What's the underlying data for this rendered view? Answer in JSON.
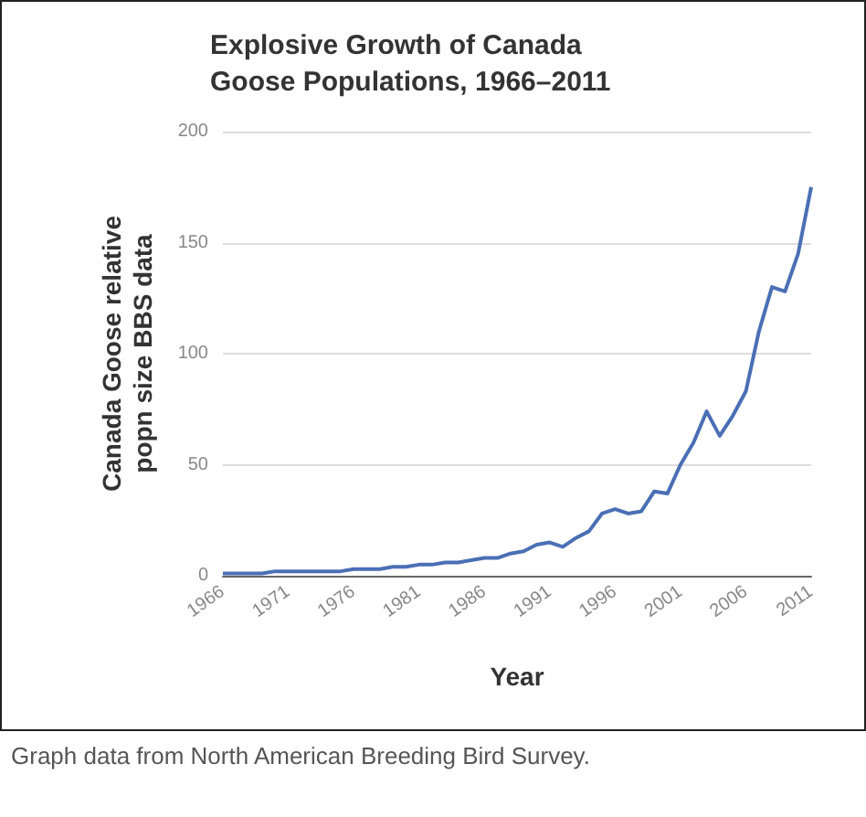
{
  "chart_data": {
    "type": "line",
    "title": "Explosive Growth of Canada\nGoose Populations, 1966–2011",
    "xlabel": "Year",
    "ylabel": "Canada Goose relative\npopn size BBS data",
    "annotations": [
      "Graph data from North American Breeding Bird Survey."
    ],
    "x": [
      1966,
      1967,
      1968,
      1969,
      1970,
      1971,
      1972,
      1973,
      1974,
      1975,
      1976,
      1977,
      1978,
      1979,
      1980,
      1981,
      1982,
      1983,
      1984,
      1985,
      1986,
      1987,
      1988,
      1989,
      1990,
      1991,
      1992,
      1993,
      1994,
      1995,
      1996,
      1997,
      1998,
      1999,
      2000,
      2001,
      2002,
      2003,
      2004,
      2005,
      2006,
      2007,
      2008,
      2009,
      2010,
      2011
    ],
    "series": [
      {
        "color": "#4a6fb5",
        "values": [
          1,
          1,
          1,
          1,
          2,
          2,
          2,
          2,
          2,
          2,
          3,
          3,
          3,
          4,
          4,
          5,
          5,
          6,
          6,
          7,
          8,
          8,
          10,
          11,
          14,
          15,
          13,
          17,
          20,
          28,
          30,
          28,
          29,
          38,
          37,
          50,
          60,
          74,
          63,
          72,
          83,
          110,
          130,
          128,
          145,
          175
        ]
      }
    ],
    "xlim": [
      1966,
      2011
    ],
    "xticks": [
      1966,
      1971,
      1976,
      1981,
      1986,
      1991,
      1996,
      2001,
      2006,
      2011
    ],
    "ylim": [
      0,
      200
    ],
    "yticks": [
      0,
      50,
      100,
      150,
      200
    ],
    "grid": "y",
    "marker": "none",
    "line_style": "solid"
  }
}
